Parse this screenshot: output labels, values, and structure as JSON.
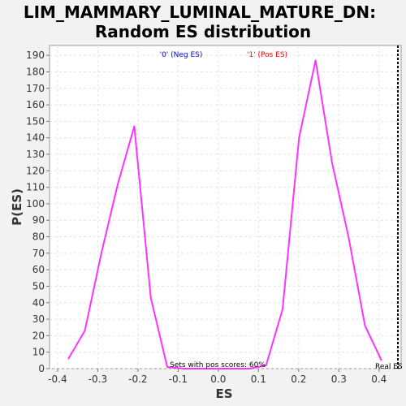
{
  "chart_data": {
    "type": "line",
    "title_line1": "LIM_MAMMARY_LUMINAL_MATURE_DN:",
    "title_line2": "Random ES distribution",
    "xlabel": "ES",
    "ylabel": "P(ES)",
    "xlim": [
      -0.42,
      0.455
    ],
    "ylim": [
      0,
      196
    ],
    "x_ticks": [
      "-0.4",
      "-0.3",
      "-0.2",
      "-0.1",
      "0.0",
      "0.1",
      "0.2",
      "0.3",
      "0.4"
    ],
    "x_tick_values": [
      -0.4,
      -0.3,
      -0.2,
      -0.1,
      0.0,
      0.1,
      0.2,
      0.3,
      0.4
    ],
    "y_ticks": [
      "0",
      "10",
      "20",
      "30",
      "40",
      "50",
      "60",
      "70",
      "80",
      "90",
      "100",
      "110",
      "120",
      "130",
      "140",
      "150",
      "160",
      "170",
      "180",
      "190"
    ],
    "y_tick_values": [
      0,
      10,
      20,
      30,
      40,
      50,
      60,
      70,
      80,
      90,
      100,
      110,
      120,
      130,
      140,
      150,
      160,
      170,
      180,
      190
    ],
    "grid": true,
    "series": [
      {
        "color": "#ff33ff",
        "x": [
          -0.373,
          -0.332,
          -0.291,
          -0.25,
          -0.209,
          -0.168,
          -0.127,
          -0.086,
          -0.045,
          -0.004,
          0.037,
          0.078,
          0.119,
          0.16,
          0.201,
          0.242,
          0.283,
          0.324,
          0.365,
          0.406
        ],
        "y": [
          6,
          23,
          70,
          112,
          147,
          43,
          1,
          0,
          0,
          0,
          0,
          0,
          2,
          36,
          140,
          187,
          125,
          80,
          26,
          5
        ]
      }
    ],
    "annotations": {
      "neg_label": "'0' (Neg ES)",
      "pos_label": "'1' (Pos ES)",
      "neg_color": "#0000ff",
      "pos_color": "#ff0000",
      "sets_text": "Sets with pos scores: 60%",
      "real_es_label": "Real ES",
      "real_es_value": 0.447
    }
  }
}
